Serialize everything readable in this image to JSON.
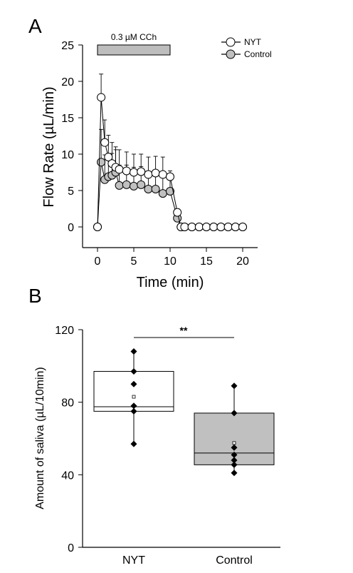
{
  "panels": {
    "a_label": "A",
    "b_label": "B"
  },
  "chart_data": [
    {
      "type": "line",
      "xlabel": "Time (min)",
      "ylabel": "Flow Rate (µL/min)",
      "xlim": [
        -1,
        21
      ],
      "ylim": [
        -2.5,
        25
      ],
      "xticks": [
        "0",
        "5",
        "10",
        "15",
        "20"
      ],
      "yticks": [
        "0",
        "5",
        "10",
        "15",
        "20",
        "25"
      ],
      "stimulus": {
        "label": "0.3 µM CCh",
        "start": 0,
        "end": 10
      },
      "legend_position": "top-right",
      "series": [
        {
          "name": "NYT",
          "marker_fill": "#ffffff",
          "x": [
            0,
            0.5,
            1,
            1.5,
            2,
            2.5,
            3,
            4,
            5,
            6,
            7,
            8,
            9,
            10,
            11,
            11.5,
            12,
            13,
            14,
            15,
            16,
            17,
            18,
            19,
            20
          ],
          "y": [
            0,
            17.8,
            11.6,
            9.6,
            8.7,
            8.2,
            7.9,
            7.7,
            7.5,
            7.6,
            7.2,
            7.4,
            7.2,
            6.9,
            2.0,
            0,
            0,
            0,
            0,
            0,
            0,
            0,
            0,
            0,
            0
          ],
          "err": [
            0,
            3.2,
            3.1,
            3.0,
            2.9,
            2.8,
            2.7,
            2.6,
            2.5,
            2.4,
            2.4,
            2.3,
            2.4,
            0.8,
            0.5,
            0,
            0,
            0,
            0,
            0,
            0,
            0,
            0,
            0,
            0
          ]
        },
        {
          "name": "Control",
          "marker_fill": "#c0c0c0",
          "x": [
            0,
            0.5,
            1,
            1.5,
            2,
            2.5,
            3,
            4,
            5,
            6,
            7,
            8,
            9,
            10,
            11,
            11.5,
            12,
            13,
            14,
            15,
            16,
            17,
            18,
            19,
            20
          ],
          "y": [
            0,
            8.9,
            6.5,
            6.9,
            7.1,
            7.5,
            5.7,
            5.8,
            5.6,
            5.8,
            5.2,
            5.2,
            4.6,
            4.9,
            1.2,
            0,
            0,
            0,
            0,
            0,
            0,
            0,
            0,
            0,
            0
          ],
          "err": [
            0,
            4.5,
            3.4,
            3.2,
            3.0,
            3.1,
            2.8,
            2.7,
            2.6,
            2.5,
            2.5,
            2.4,
            2.3,
            2.1,
            0.5,
            0,
            0,
            0,
            0,
            0,
            0,
            0,
            0,
            0,
            0
          ]
        }
      ]
    },
    {
      "type": "box",
      "ylabel": "Amount of saliva (µL/10min)",
      "ylim": [
        0,
        120
      ],
      "yticks": [
        "0",
        "40",
        "80",
        "120"
      ],
      "categories": [
        "NYT",
        "Control"
      ],
      "significance": "**",
      "boxes": [
        {
          "name": "NYT",
          "fill": "#ffffff",
          "q1": 75,
          "median": 77.5,
          "q3": 97,
          "mean": 83,
          "points": [
            108,
            97,
            90,
            78,
            75,
            57
          ]
        },
        {
          "name": "Control",
          "fill": "#c0c0c0",
          "q1": 45.5,
          "median": 52,
          "q3": 74,
          "mean": 57.5,
          "points": [
            89,
            74,
            55,
            51,
            48,
            45.5,
            41
          ]
        }
      ]
    }
  ]
}
